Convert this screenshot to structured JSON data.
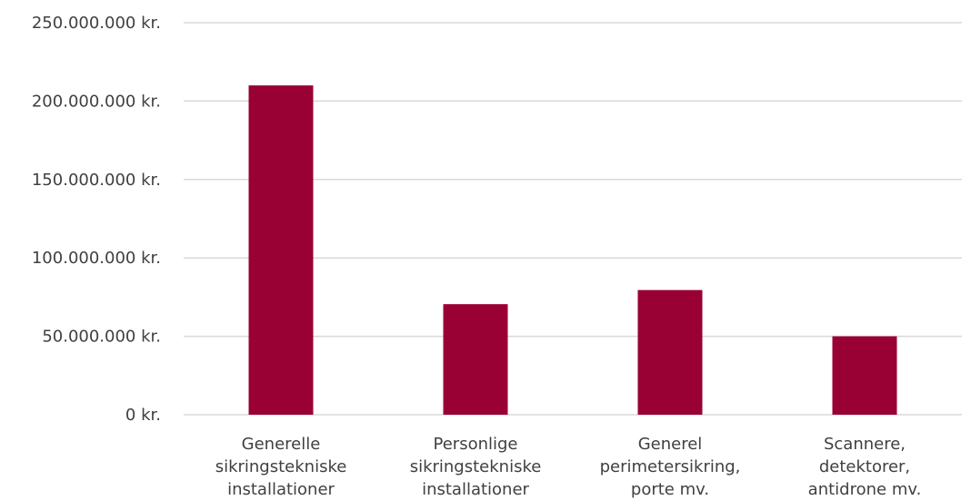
{
  "chart_data": {
    "type": "bar",
    "title": "",
    "xlabel": "",
    "ylabel": "",
    "categories": [
      [
        "Generelle",
        "sikringstekniske",
        "installationer"
      ],
      [
        "Personlige",
        "sikringstekniske",
        "installationer"
      ],
      [
        "Generel",
        "perimetersikring,",
        "porte mv."
      ],
      [
        "Scannere,",
        "detektorer,",
        "antidrone mv."
      ]
    ],
    "values": [
      210000000,
      70500000,
      79500000,
      50000000
    ],
    "ylim": [
      0,
      250000000
    ],
    "yticks": [
      0,
      50000000,
      100000000,
      150000000,
      200000000,
      250000000
    ],
    "ytick_labels": [
      "0 kr.",
      "50.000.000 kr.",
      "100.000.000 kr.",
      "150.000.000 kr.",
      "200.000.000 kr.",
      "250.000.000 kr."
    ],
    "grid": true,
    "legend": "none",
    "bar_color": "#990033",
    "grid_color": "#d9d9d9"
  }
}
